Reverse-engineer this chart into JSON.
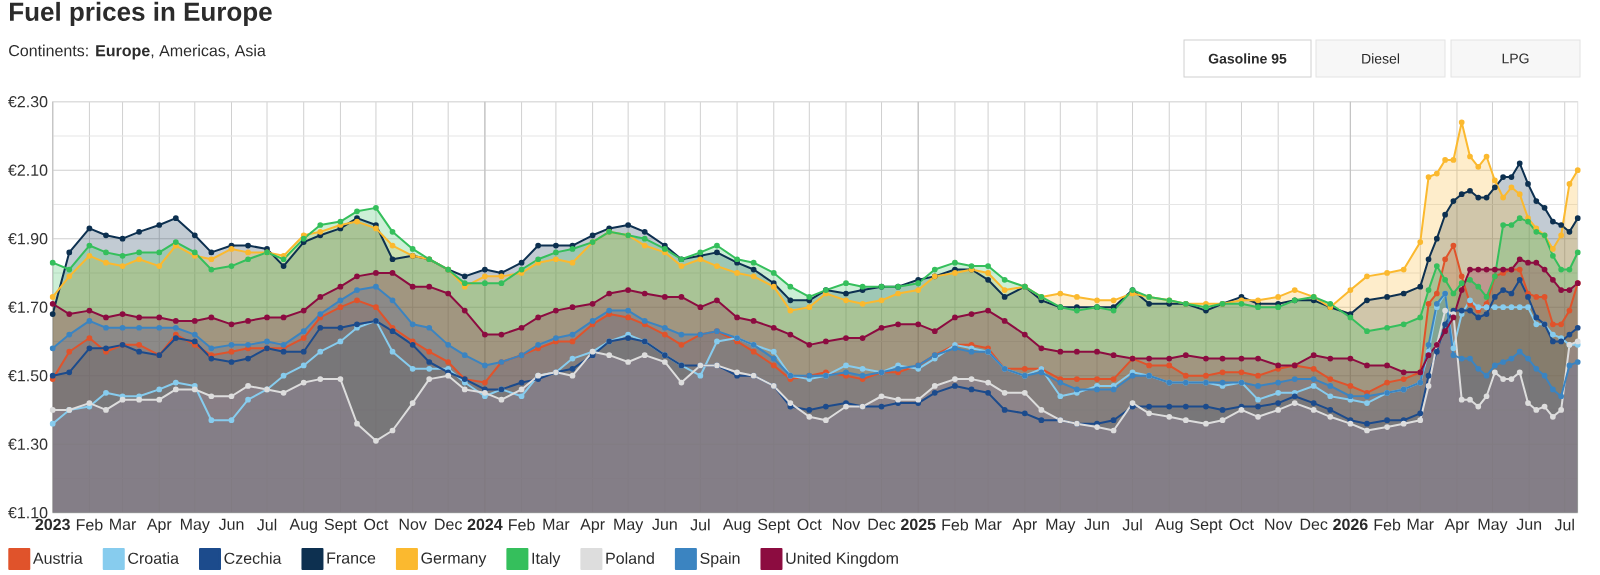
{
  "chart_data": {
    "type": "area",
    "title": "Fuel prices in Europe",
    "subtitle": "Continents: **Europe**, Americas, Asia",
    "annotations": [
      "Gasoline 95",
      "Diesel",
      "LPG"
    ],
    "x": [
      "2023-01-01",
      "2023-01-15",
      "2023-02-01",
      "2023-02-15",
      "2023-03-01",
      "2023-03-15",
      "2023-04-01",
      "2023-04-15",
      "2023-05-01",
      "2023-05-15",
      "2023-06-01",
      "2023-06-15",
      "2023-07-01",
      "2023-07-15",
      "2023-08-01",
      "2023-08-15",
      "2023-09-01",
      "2023-09-15",
      "2023-10-01",
      "2023-10-15",
      "2023-11-01",
      "2023-11-15",
      "2023-12-01",
      "2023-12-15",
      "2024-01-01",
      "2024-01-15",
      "2024-02-01",
      "2024-02-15",
      "2024-03-01",
      "2024-03-15",
      "2024-04-01",
      "2024-04-15",
      "2024-05-01",
      "2024-05-15",
      "2024-06-01",
      "2024-06-15",
      "2024-07-01",
      "2024-07-15",
      "2024-08-01",
      "2024-08-15",
      "2024-09-01",
      "2024-09-15",
      "2024-10-01",
      "2024-10-15",
      "2024-11-01",
      "2024-11-15",
      "2024-12-01",
      "2024-12-15",
      "2025-01-01",
      "2025-01-15",
      "2025-02-01",
      "2025-02-15",
      "2025-03-01",
      "2025-03-15",
      "2025-04-01",
      "2025-04-15",
      "2025-05-01",
      "2025-05-15",
      "2025-06-01",
      "2025-06-15",
      "2025-07-01",
      "2025-07-15",
      "2025-08-01",
      "2025-08-15",
      "2025-09-01",
      "2025-09-15",
      "2025-10-01",
      "2025-10-15",
      "2025-11-01",
      "2025-11-15",
      "2025-12-01",
      "2025-12-15",
      "2026-01-01",
      "2026-01-15",
      "2026-02-01",
      "2026-02-15",
      "2026-03-01",
      "2026-03-08",
      "2026-03-15",
      "2026-03-22",
      "2026-03-29",
      "2026-04-05",
      "2026-04-12",
      "2026-04-19",
      "2026-04-26",
      "2026-05-03",
      "2026-05-10",
      "2026-05-17",
      "2026-05-24",
      "2026-05-31",
      "2026-06-07",
      "2026-06-14",
      "2026-06-21",
      "2026-06-28",
      "2026-07-05",
      "2026-07-12"
    ],
    "xlim": [
      "2023-01-01",
      "2026-07-12"
    ],
    "xticks": [
      {
        "value": "2023-01-01",
        "label": "2023"
      },
      {
        "value": "2023-02-01",
        "label": "Feb"
      },
      {
        "value": "2023-03-01",
        "label": "Mar"
      },
      {
        "value": "2023-04-01",
        "label": "Apr"
      },
      {
        "value": "2023-05-01",
        "label": "May"
      },
      {
        "value": "2023-06-01",
        "label": "Jun"
      },
      {
        "value": "2023-07-01",
        "label": "Jul"
      },
      {
        "value": "2023-08-01",
        "label": "Aug"
      },
      {
        "value": "2023-09-01",
        "label": "Sept"
      },
      {
        "value": "2023-10-01",
        "label": "Oct"
      },
      {
        "value": "2023-11-01",
        "label": "Nov"
      },
      {
        "value": "2023-12-01",
        "label": "Dec"
      },
      {
        "value": "2024-01-01",
        "label": "2024"
      },
      {
        "value": "2024-02-01",
        "label": "Feb"
      },
      {
        "value": "2024-03-01",
        "label": "Mar"
      },
      {
        "value": "2024-04-01",
        "label": "Apr"
      },
      {
        "value": "2024-05-01",
        "label": "May"
      },
      {
        "value": "2024-06-01",
        "label": "Jun"
      },
      {
        "value": "2024-07-01",
        "label": "Jul"
      },
      {
        "value": "2024-08-01",
        "label": "Aug"
      },
      {
        "value": "2024-09-01",
        "label": "Sept"
      },
      {
        "value": "2024-10-01",
        "label": "Oct"
      },
      {
        "value": "2024-11-01",
        "label": "Nov"
      },
      {
        "value": "2024-12-01",
        "label": "Dec"
      },
      {
        "value": "2025-01-01",
        "label": "2025"
      },
      {
        "value": "2025-02-01",
        "label": "Feb"
      },
      {
        "value": "2025-03-01",
        "label": "Mar"
      },
      {
        "value": "2025-04-01",
        "label": "Apr"
      },
      {
        "value": "2025-05-01",
        "label": "May"
      },
      {
        "value": "2025-06-01",
        "label": "Jun"
      },
      {
        "value": "2025-07-01",
        "label": "Jul"
      },
      {
        "value": "2025-08-01",
        "label": "Aug"
      },
      {
        "value": "2025-09-01",
        "label": "Sept"
      },
      {
        "value": "2025-10-01",
        "label": "Oct"
      },
      {
        "value": "2025-11-01",
        "label": "Nov"
      },
      {
        "value": "2025-12-01",
        "label": "Dec"
      },
      {
        "value": "2026-01-01",
        "label": "2026"
      },
      {
        "value": "2026-02-01",
        "label": "Feb"
      },
      {
        "value": "2026-03-01",
        "label": "Mar"
      },
      {
        "value": "2026-04-01",
        "label": "Apr"
      },
      {
        "value": "2026-05-01",
        "label": "May"
      },
      {
        "value": "2026-06-01",
        "label": "Jun"
      },
      {
        "value": "2026-07-01",
        "label": "Jul"
      }
    ],
    "ylim": [
      1.1,
      2.3
    ],
    "yticks": [
      {
        "value": 1.1,
        "label": "€1.10"
      },
      {
        "value": 1.2,
        "label": null
      },
      {
        "value": 1.3,
        "label": "€1.30"
      },
      {
        "value": 1.4,
        "label": null
      },
      {
        "value": 1.5,
        "label": "€1.50"
      },
      {
        "value": 1.6,
        "label": null
      },
      {
        "value": 1.7,
        "label": "€1.70"
      },
      {
        "value": 1.8,
        "label": null
      },
      {
        "value": 1.9,
        "label": "€1.90"
      },
      {
        "value": 2.0,
        "label": null
      },
      {
        "value": 2.1,
        "label": "€2.10"
      },
      {
        "value": 2.2,
        "label": null
      },
      {
        "value": 2.3,
        "label": "€2.30"
      }
    ],
    "grid": true,
    "legend": "bottom",
    "marker": "circle",
    "line_style": "solid",
    "series": [
      {
        "name": "Austria",
        "color": "#e0532b",
        "values": [
          1.49,
          1.57,
          1.61,
          1.57,
          1.59,
          1.59,
          1.56,
          1.62,
          1.59,
          1.56,
          1.57,
          1.58,
          1.58,
          1.58,
          1.61,
          1.67,
          1.7,
          1.72,
          1.7,
          1.64,
          1.6,
          1.57,
          1.54,
          1.49,
          1.48,
          1.54,
          1.56,
          1.58,
          1.6,
          1.6,
          1.65,
          1.68,
          1.67,
          1.65,
          1.62,
          1.59,
          1.62,
          1.63,
          1.6,
          1.57,
          1.53,
          1.49,
          1.5,
          1.51,
          1.5,
          1.49,
          1.51,
          1.51,
          1.53,
          1.56,
          1.59,
          1.59,
          1.58,
          1.52,
          1.52,
          1.52,
          1.49,
          1.49,
          1.49,
          1.49,
          1.55,
          1.53,
          1.53,
          1.5,
          1.5,
          1.51,
          1.51,
          1.5,
          1.52,
          1.53,
          1.52,
          1.49,
          1.47,
          1.45,
          1.48,
          1.49,
          1.51,
          1.71,
          1.74,
          1.84,
          1.88,
          1.79,
          1.71,
          1.69,
          1.71,
          1.79,
          1.8,
          1.81,
          1.81,
          1.74,
          1.73,
          1.73,
          1.65,
          1.65,
          1.69,
          1.77
        ]
      },
      {
        "name": "Croatia",
        "color": "#87ccee",
        "values": [
          1.36,
          1.4,
          1.41,
          1.45,
          1.44,
          1.44,
          1.46,
          1.48,
          1.47,
          1.37,
          1.37,
          1.43,
          1.46,
          1.5,
          1.53,
          1.57,
          1.6,
          1.64,
          1.66,
          1.57,
          1.52,
          1.52,
          1.52,
          1.48,
          1.44,
          1.46,
          1.44,
          1.5,
          1.51,
          1.55,
          1.57,
          1.6,
          1.62,
          1.6,
          1.56,
          1.53,
          1.5,
          1.6,
          1.61,
          1.59,
          1.57,
          1.5,
          1.49,
          1.5,
          1.53,
          1.52,
          1.51,
          1.53,
          1.52,
          1.55,
          1.59,
          1.58,
          1.57,
          1.52,
          1.5,
          1.52,
          1.44,
          1.45,
          1.47,
          1.47,
          1.51,
          1.5,
          1.48,
          1.48,
          1.48,
          1.47,
          1.48,
          1.43,
          1.45,
          1.45,
          1.47,
          1.44,
          1.43,
          1.42,
          1.45,
          1.46,
          1.48,
          1.57,
          1.7,
          1.74,
          1.58,
          1.68,
          1.72,
          1.7,
          1.7,
          1.7,
          1.7,
          1.7,
          1.7,
          1.7,
          1.65,
          1.65,
          1.62,
          1.61,
          1.59,
          1.59
        ]
      },
      {
        "name": "Czechia",
        "color": "#1c4b8c",
        "values": [
          1.5,
          1.51,
          1.58,
          1.58,
          1.59,
          1.57,
          1.56,
          1.61,
          1.6,
          1.55,
          1.54,
          1.55,
          1.58,
          1.57,
          1.57,
          1.64,
          1.64,
          1.65,
          1.66,
          1.63,
          1.59,
          1.54,
          1.51,
          1.49,
          1.46,
          1.46,
          1.48,
          1.49,
          1.51,
          1.52,
          1.56,
          1.6,
          1.61,
          1.6,
          1.56,
          1.53,
          1.53,
          1.53,
          1.5,
          1.5,
          1.47,
          1.41,
          1.4,
          1.41,
          1.42,
          1.41,
          1.41,
          1.42,
          1.42,
          1.45,
          1.47,
          1.46,
          1.45,
          1.4,
          1.39,
          1.37,
          1.37,
          1.36,
          1.36,
          1.37,
          1.41,
          1.41,
          1.41,
          1.41,
          1.41,
          1.4,
          1.41,
          1.41,
          1.42,
          1.44,
          1.42,
          1.4,
          1.37,
          1.36,
          1.37,
          1.37,
          1.39,
          1.5,
          1.57,
          1.65,
          1.69,
          1.69,
          1.69,
          1.67,
          1.68,
          1.73,
          1.75,
          1.74,
          1.78,
          1.73,
          1.67,
          1.65,
          1.6,
          1.6,
          1.62,
          1.64
        ]
      },
      {
        "name": "France",
        "color": "#0d3050",
        "values": [
          1.68,
          1.86,
          1.93,
          1.91,
          1.9,
          1.92,
          1.94,
          1.96,
          1.91,
          1.86,
          1.88,
          1.88,
          1.87,
          1.82,
          1.89,
          1.91,
          1.93,
          1.96,
          1.94,
          1.84,
          1.85,
          1.84,
          1.81,
          1.79,
          1.81,
          1.8,
          1.83,
          1.88,
          1.88,
          1.88,
          1.91,
          1.93,
          1.94,
          1.92,
          1.88,
          1.84,
          1.85,
          1.86,
          1.83,
          1.81,
          1.77,
          1.72,
          1.72,
          1.75,
          1.74,
          1.75,
          1.76,
          1.76,
          1.78,
          1.79,
          1.81,
          1.81,
          1.78,
          1.73,
          1.76,
          1.72,
          1.7,
          1.7,
          1.7,
          1.7,
          1.75,
          1.71,
          1.71,
          1.71,
          1.69,
          1.71,
          1.73,
          1.71,
          1.71,
          1.72,
          1.72,
          1.7,
          1.68,
          1.72,
          1.73,
          1.74,
          1.76,
          1.84,
          1.9,
          1.97,
          2.01,
          2.03,
          2.04,
          2.02,
          2.02,
          2.05,
          2.08,
          2.08,
          2.12,
          2.06,
          2.01,
          1.99,
          1.95,
          1.94,
          1.92,
          1.96
        ]
      },
      {
        "name": "Germany",
        "color": "#fbb92f",
        "values": [
          1.73,
          1.79,
          1.85,
          1.83,
          1.82,
          1.84,
          1.82,
          1.88,
          1.85,
          1.84,
          1.87,
          1.86,
          1.86,
          1.85,
          1.91,
          1.92,
          1.94,
          1.95,
          1.93,
          1.88,
          1.85,
          1.84,
          1.81,
          1.76,
          1.79,
          1.79,
          1.8,
          1.83,
          1.84,
          1.83,
          1.89,
          1.92,
          1.91,
          1.88,
          1.86,
          1.82,
          1.84,
          1.82,
          1.8,
          1.79,
          1.76,
          1.69,
          1.7,
          1.74,
          1.72,
          1.71,
          1.72,
          1.74,
          1.75,
          1.79,
          1.8,
          1.81,
          1.8,
          1.75,
          1.76,
          1.73,
          1.74,
          1.73,
          1.72,
          1.72,
          1.74,
          1.73,
          1.72,
          1.71,
          1.71,
          1.71,
          1.72,
          1.72,
          1.73,
          1.75,
          1.73,
          1.7,
          1.75,
          1.79,
          1.8,
          1.81,
          1.89,
          2.08,
          2.09,
          2.13,
          2.13,
          2.24,
          2.14,
          2.11,
          2.14,
          2.07,
          2.02,
          2.05,
          2.03,
          1.96,
          1.93,
          1.91,
          1.87,
          1.91,
          2.06,
          2.1
        ]
      },
      {
        "name": "Italy",
        "color": "#35bf5c",
        "values": [
          1.83,
          1.81,
          1.88,
          1.86,
          1.85,
          1.86,
          1.86,
          1.89,
          1.86,
          1.81,
          1.82,
          1.84,
          1.86,
          1.84,
          1.9,
          1.94,
          1.95,
          1.98,
          1.99,
          1.92,
          1.87,
          1.84,
          1.81,
          1.77,
          1.77,
          1.77,
          1.81,
          1.84,
          1.86,
          1.87,
          1.89,
          1.92,
          1.91,
          1.9,
          1.87,
          1.84,
          1.86,
          1.88,
          1.84,
          1.83,
          1.8,
          1.76,
          1.73,
          1.75,
          1.77,
          1.76,
          1.76,
          1.76,
          1.77,
          1.81,
          1.83,
          1.82,
          1.82,
          1.78,
          1.76,
          1.73,
          1.7,
          1.69,
          1.7,
          1.69,
          1.75,
          1.73,
          1.72,
          1.71,
          1.7,
          1.71,
          1.71,
          1.7,
          1.7,
          1.72,
          1.73,
          1.71,
          1.67,
          1.63,
          1.64,
          1.65,
          1.67,
          1.75,
          1.82,
          1.78,
          1.74,
          1.77,
          1.78,
          1.76,
          1.73,
          1.79,
          1.94,
          1.94,
          1.96,
          1.95,
          1.92,
          1.91,
          1.85,
          1.81,
          1.81,
          1.86
        ]
      },
      {
        "name": "Poland",
        "color": "#dddddd",
        "values": [
          1.4,
          1.4,
          1.42,
          1.4,
          1.43,
          1.43,
          1.43,
          1.46,
          1.46,
          1.44,
          1.44,
          1.47,
          1.46,
          1.45,
          1.48,
          1.49,
          1.49,
          1.36,
          1.31,
          1.34,
          1.42,
          1.49,
          1.5,
          1.46,
          1.45,
          1.43,
          1.46,
          1.5,
          1.51,
          1.5,
          1.57,
          1.56,
          1.54,
          1.56,
          1.54,
          1.48,
          1.53,
          1.53,
          1.51,
          1.5,
          1.47,
          1.42,
          1.38,
          1.37,
          1.41,
          1.41,
          1.44,
          1.43,
          1.43,
          1.47,
          1.49,
          1.49,
          1.48,
          1.45,
          1.45,
          1.4,
          1.37,
          1.36,
          1.35,
          1.34,
          1.42,
          1.39,
          1.38,
          1.37,
          1.36,
          1.37,
          1.4,
          1.38,
          1.4,
          1.42,
          1.4,
          1.38,
          1.36,
          1.34,
          1.35,
          1.36,
          1.37,
          1.47,
          1.59,
          1.69,
          1.68,
          1.43,
          1.43,
          1.41,
          1.44,
          1.51,
          1.49,
          1.49,
          1.51,
          1.42,
          1.4,
          1.41,
          1.38,
          1.4,
          1.59,
          1.6
        ]
      },
      {
        "name": "Spain",
        "color": "#3b84c1",
        "values": [
          1.58,
          1.62,
          1.66,
          1.64,
          1.64,
          1.64,
          1.64,
          1.64,
          1.62,
          1.58,
          1.59,
          1.59,
          1.6,
          1.59,
          1.63,
          1.68,
          1.72,
          1.75,
          1.76,
          1.72,
          1.65,
          1.64,
          1.59,
          1.56,
          1.53,
          1.54,
          1.56,
          1.59,
          1.61,
          1.62,
          1.66,
          1.69,
          1.69,
          1.66,
          1.64,
          1.62,
          1.62,
          1.63,
          1.61,
          1.59,
          1.55,
          1.5,
          1.5,
          1.5,
          1.51,
          1.5,
          1.51,
          1.52,
          1.53,
          1.56,
          1.58,
          1.57,
          1.57,
          1.52,
          1.5,
          1.51,
          1.48,
          1.46,
          1.46,
          1.46,
          1.5,
          1.5,
          1.48,
          1.48,
          1.48,
          1.48,
          1.48,
          1.47,
          1.48,
          1.49,
          1.49,
          1.47,
          1.44,
          1.44,
          1.45,
          1.46,
          1.48,
          1.59,
          1.71,
          1.74,
          1.56,
          1.55,
          1.55,
          1.52,
          1.5,
          1.53,
          1.54,
          1.55,
          1.57,
          1.55,
          1.52,
          1.5,
          1.46,
          1.44,
          1.53,
          1.54
        ]
      },
      {
        "name": "United Kingdom",
        "color": "#8c0c40",
        "values": [
          1.71,
          1.68,
          1.69,
          1.67,
          1.68,
          1.67,
          1.67,
          1.66,
          1.66,
          1.67,
          1.65,
          1.66,
          1.67,
          1.67,
          1.69,
          1.73,
          1.76,
          1.79,
          1.8,
          1.8,
          1.76,
          1.76,
          1.74,
          1.69,
          1.62,
          1.62,
          1.64,
          1.67,
          1.69,
          1.7,
          1.71,
          1.74,
          1.75,
          1.74,
          1.73,
          1.73,
          1.7,
          1.72,
          1.67,
          1.66,
          1.64,
          1.62,
          1.59,
          1.6,
          1.61,
          1.61,
          1.64,
          1.65,
          1.65,
          1.63,
          1.67,
          1.68,
          1.69,
          1.66,
          1.62,
          1.58,
          1.57,
          1.57,
          1.57,
          1.56,
          1.55,
          1.55,
          1.55,
          1.56,
          1.55,
          1.55,
          1.55,
          1.55,
          1.53,
          1.53,
          1.56,
          1.55,
          1.55,
          1.53,
          1.53,
          1.51,
          1.51,
          1.56,
          1.59,
          1.63,
          1.67,
          1.75,
          1.81,
          1.81,
          1.81,
          1.81,
          1.81,
          1.81,
          1.84,
          1.83,
          1.83,
          1.81,
          1.78,
          1.75,
          1.75,
          1.77
        ]
      }
    ]
  }
}
